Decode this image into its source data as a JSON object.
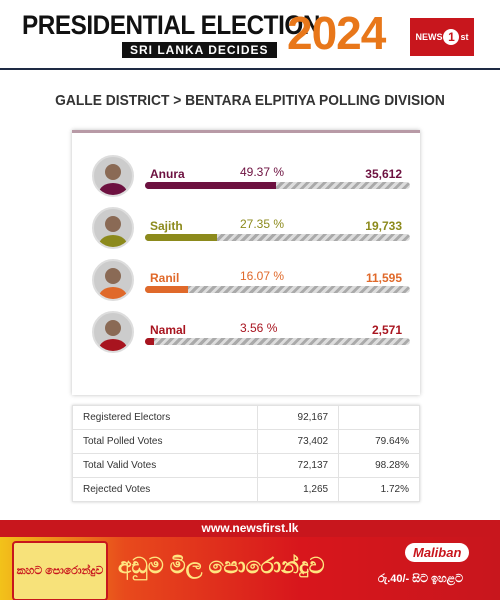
{
  "header": {
    "title": "PRESIDENTIAL ELECTION",
    "subtitle": "SRI LANKA DECIDES",
    "year": "2024",
    "logo": [
      "NEWS",
      "1",
      "st"
    ]
  },
  "location": "GALLE DISTRICT > BENTARA ELPITIYA POLLING DIVISION",
  "candidates": [
    {
      "name": "Anura",
      "percent": 49.37,
      "percent_label": "49.37 %",
      "votes": "35,612",
      "color": "#6d1140"
    },
    {
      "name": "Sajith",
      "percent": 27.35,
      "percent_label": "27.35 %",
      "votes": "19,733",
      "color": "#8c8a1c"
    },
    {
      "name": "Ranil",
      "percent": 16.07,
      "percent_label": "16.07 %",
      "votes": "11,595",
      "color": "#e0692a"
    },
    {
      "name": "Namal",
      "percent": 3.56,
      "percent_label": "3.56 %",
      "votes": "2,571",
      "color": "#a8141f"
    }
  ],
  "stats": {
    "rows": [
      [
        "Registered Electors",
        "92,167"
      ],
      [
        "Total Polled Votes",
        "73,402",
        "79.64%"
      ],
      [
        "Total Valid Votes",
        "72,137",
        "98.28%"
      ],
      [
        "Rejected Votes",
        "1,265",
        "1.72%"
      ]
    ]
  },
  "footer": {
    "url": "www.newsfirst.lk",
    "ad_pack": "කහට පොරොන්දුව",
    "ad_headline": "අඩුම මිල පොරොන්දුව",
    "ad_brand": "Maliban",
    "ad_price": "රු.40/- සිට ඉහළට"
  }
}
